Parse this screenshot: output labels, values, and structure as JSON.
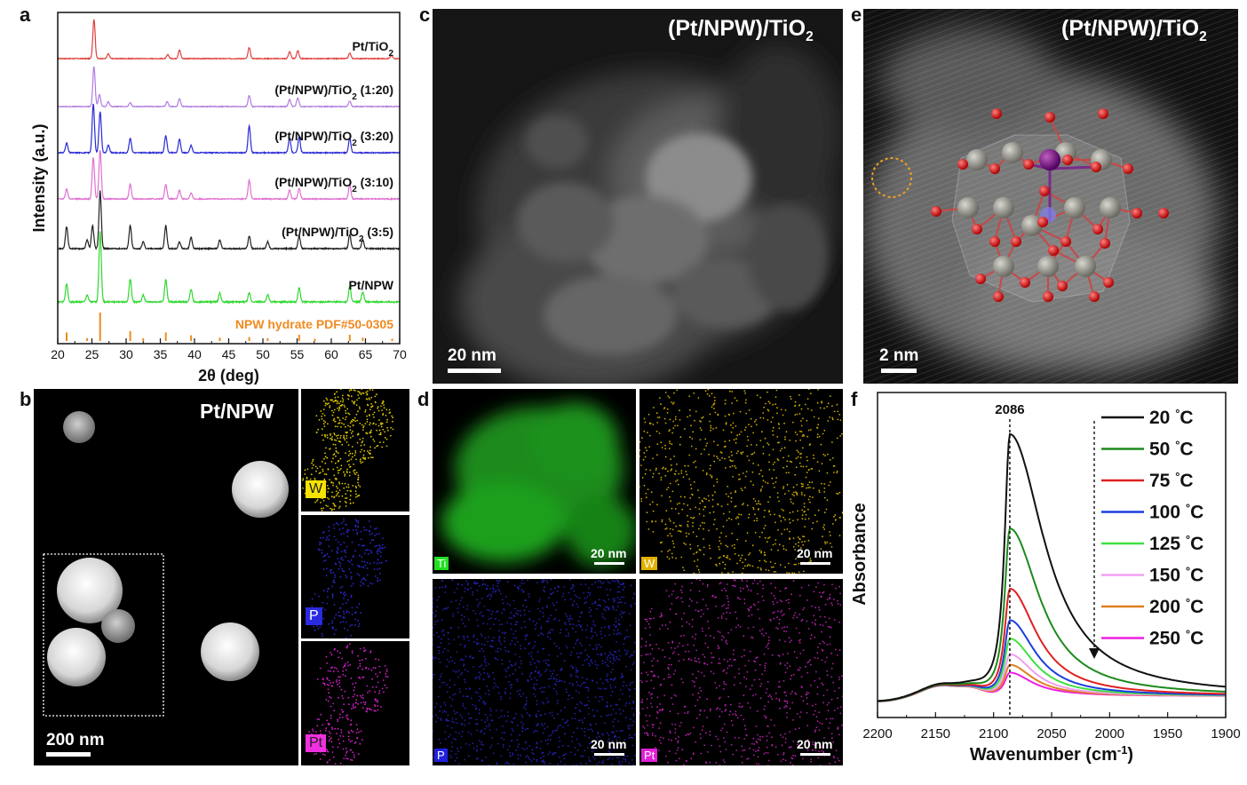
{
  "figure": {
    "panels": [
      "a",
      "b",
      "c",
      "d",
      "e",
      "f"
    ]
  },
  "chart_data": [
    {
      "panel": "a",
      "type": "line",
      "xlabel": "2θ (deg)",
      "ylabel": "Intensity (a.u.)",
      "xlim": [
        20,
        70
      ],
      "xticks": [
        20,
        25,
        30,
        35,
        40,
        45,
        50,
        55,
        60,
        65,
        70
      ],
      "grid": false,
      "series": [
        {
          "name": "Pt/TiO",
          "sub": "2",
          "suffix": "",
          "color": "#e0403c",
          "peaks": [
            [
              25.3,
              1.0
            ],
            [
              27.4,
              0.12
            ],
            [
              36.1,
              0.1
            ],
            [
              37.8,
              0.22
            ],
            [
              48.0,
              0.28
            ],
            [
              53.9,
              0.18
            ],
            [
              55.1,
              0.2
            ],
            [
              62.7,
              0.14
            ],
            [
              68.8,
              0.08
            ]
          ]
        },
        {
          "name": "(Pt/NPW)/TiO",
          "sub": "2",
          "suffix": " (1:20)",
          "color": "#b07ce0",
          "peaks": [
            [
              25.3,
              1.0
            ],
            [
              26.1,
              0.3
            ],
            [
              27.4,
              0.12
            ],
            [
              30.6,
              0.1
            ],
            [
              36.0,
              0.12
            ],
            [
              37.8,
              0.2
            ],
            [
              48.0,
              0.28
            ],
            [
              53.9,
              0.18
            ],
            [
              55.1,
              0.22
            ],
            [
              62.7,
              0.14
            ]
          ]
        },
        {
          "name": "(Pt/NPW)/TiO",
          "sub": "2",
          "suffix": " (3:20)",
          "color": "#2a2ad6",
          "peaks": [
            [
              21.3,
              0.2
            ],
            [
              25.2,
              1.0
            ],
            [
              26.2,
              0.85
            ],
            [
              27.4,
              0.15
            ],
            [
              30.6,
              0.3
            ],
            [
              35.8,
              0.35
            ],
            [
              37.8,
              0.28
            ],
            [
              39.5,
              0.15
            ],
            [
              48.0,
              0.55
            ],
            [
              53.9,
              0.3
            ],
            [
              55.3,
              0.32
            ],
            [
              62.7,
              0.3
            ]
          ]
        },
        {
          "name": "(Pt/NPW)/TiO",
          "sub": "2",
          "suffix": " (3:10)",
          "color": "#e070d0",
          "peaks": [
            [
              21.3,
              0.2
            ],
            [
              25.2,
              0.85
            ],
            [
              26.2,
              1.0
            ],
            [
              30.6,
              0.3
            ],
            [
              35.8,
              0.3
            ],
            [
              37.8,
              0.18
            ],
            [
              39.5,
              0.12
            ],
            [
              48.0,
              0.38
            ],
            [
              53.9,
              0.18
            ],
            [
              55.3,
              0.22
            ],
            [
              62.7,
              0.3
            ]
          ]
        },
        {
          "name": "(Pt/NPW)/TiO",
          "sub": "2",
          "suffix": " (3:5)",
          "color": "#202020",
          "peaks": [
            [
              21.3,
              0.38
            ],
            [
              24.3,
              0.15
            ],
            [
              25.1,
              0.4
            ],
            [
              26.2,
              1.0
            ],
            [
              30.6,
              0.4
            ],
            [
              32.5,
              0.12
            ],
            [
              35.8,
              0.4
            ],
            [
              37.8,
              0.12
            ],
            [
              39.5,
              0.2
            ],
            [
              43.7,
              0.15
            ],
            [
              48.0,
              0.22
            ],
            [
              50.7,
              0.12
            ],
            [
              55.3,
              0.22
            ],
            [
              62.7,
              0.24
            ],
            [
              64.6,
              0.15
            ]
          ]
        },
        {
          "name": "Pt/NPW",
          "sub": "",
          "suffix": "",
          "color": "#30d830",
          "peaks": [
            [
              21.3,
              0.25
            ],
            [
              24.3,
              0.1
            ],
            [
              26.2,
              1.0
            ],
            [
              30.6,
              0.32
            ],
            [
              32.5,
              0.1
            ],
            [
              35.8,
              0.32
            ],
            [
              39.5,
              0.18
            ],
            [
              43.7,
              0.12
            ],
            [
              48.0,
              0.12
            ],
            [
              50.7,
              0.1
            ],
            [
              55.3,
              0.2
            ],
            [
              62.7,
              0.22
            ],
            [
              64.6,
              0.14
            ]
          ]
        },
        {
          "name": "NPW hydrate PDF#50-0305",
          "sub": "",
          "suffix": "",
          "color": "#f08a20",
          "kind": "reference",
          "peaks": [
            [
              21.3,
              0.3
            ],
            [
              24.3,
              0.1
            ],
            [
              26.2,
              1.0
            ],
            [
              30.6,
              0.35
            ],
            [
              32.5,
              0.1
            ],
            [
              35.8,
              0.3
            ],
            [
              39.5,
              0.2
            ],
            [
              43.7,
              0.12
            ],
            [
              48.0,
              0.14
            ],
            [
              50.7,
              0.1
            ],
            [
              55.3,
              0.22
            ],
            [
              57.6,
              0.08
            ],
            [
              62.7,
              0.22
            ],
            [
              64.6,
              0.12
            ],
            [
              68.9,
              0.08
            ]
          ]
        }
      ]
    },
    {
      "panel": "f",
      "type": "line",
      "xlabel": "Wavenumber (cm",
      "xlabel_sup": "-1",
      "xlabel_end": ")",
      "ylabel": "Absorbance",
      "xlim": [
        2200,
        1900
      ],
      "x_reversed": true,
      "xticks": [
        2200,
        2150,
        2100,
        2050,
        2000,
        1950,
        1900
      ],
      "grid": false,
      "annotation": {
        "label": "2086",
        "x": 2086
      },
      "series": [
        {
          "name": "20",
          "unit": "°C",
          "color": "#111111",
          "peak": 1.0
        },
        {
          "name": "50",
          "unit": "°C",
          "color": "#1c8a1c",
          "peak": 0.64
        },
        {
          "name": "75",
          "unit": "°C",
          "color": "#e02020",
          "peak": 0.41
        },
        {
          "name": "100",
          "unit": "°C",
          "color": "#1a3ee0",
          "peak": 0.29
        },
        {
          "name": "125",
          "unit": "°C",
          "color": "#40e040",
          "peak": 0.22
        },
        {
          "name": "150",
          "unit": "°C",
          "color": "#f0a0f0",
          "peak": 0.16
        },
        {
          "name": "200",
          "unit": "°C",
          "color": "#e08020",
          "peak": 0.12
        },
        {
          "name": "250",
          "unit": "°C",
          "color": "#f020e0",
          "peak": 0.09
        }
      ]
    }
  ],
  "panel_b": {
    "title": "Pt/NPW",
    "scale": "200 nm",
    "maps": [
      {
        "label": "W",
        "bg": "#f5e200",
        "fg": "#222222",
        "dot": "#d8c400"
      },
      {
        "label": "P",
        "bg": "#2a2ae0",
        "fg": "#ffffff",
        "dot": "#2a2ad0"
      },
      {
        "label": "Pt",
        "bg": "#f030e0",
        "fg": "#222222",
        "dot": "#d020c8"
      }
    ]
  },
  "panel_c": {
    "title": "(Pt/NPW)/TiO",
    "title_sub": "2",
    "scale": "20 nm"
  },
  "panel_d": {
    "maps": [
      {
        "label": "Ti",
        "bg": "#20e020",
        "fg": "#ffffff",
        "scale": "20 nm",
        "dot": "#20c820"
      },
      {
        "label": "W",
        "bg": "#e0b000",
        "fg": "#ffffff",
        "scale": "20 nm",
        "dot": "#c8a800"
      },
      {
        "label": "P",
        "bg": "#2020e0",
        "fg": "#ffffff",
        "scale": "20 nm",
        "dot": "#2222b0"
      },
      {
        "label": "Pt",
        "bg": "#e020d8",
        "fg": "#ffffff",
        "scale": "20 nm",
        "dot": "#b020a8"
      }
    ]
  },
  "panel_e": {
    "title": "(Pt/NPW)/TiO",
    "title_sub": "2",
    "scale": "2 nm"
  }
}
